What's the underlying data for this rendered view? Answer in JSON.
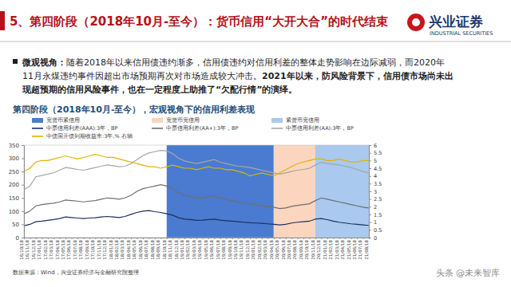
{
  "header": {
    "title": "5、第四阶段（2018年10月-至今）：货币信用“大开大合”的时代结束",
    "logo_cn": "兴业证券",
    "logo_en": "INDUSTRIAL SECURITIES"
  },
  "body": {
    "lines": [
      [
        {
          "text": "微观视角：",
          "bold": true
        },
        {
          "text": "随着2018年以来信用债违约渐多，信用债违约对信用利差的整体走势影响在边际减弱，而2020年",
          "bold": false
        }
      ],
      [
        {
          "text": "11月永煤违约事件因超出市场预期再次对市场造成较大冲击。",
          "bold": false
        },
        {
          "text": "2021年以来，防风险背景下，信用债市场尚未出",
          "bold": true
        }
      ],
      [
        {
          "text": "现超预期的信用风险事件，也在一定程度上助推了“欠配行情”的演绎。",
          "bold": true
        }
      ]
    ]
  },
  "footer": {
    "source": "数据来源：Wind，兴业证券经济与金融研究院整理",
    "watermark": "头条 @未来智库"
  },
  "chart_data": {
    "type": "line",
    "title": "第四阶段（2018年10月-至今），宏观视角下的信用利差表现",
    "categories": [
      "16/10/18",
      "16/11/18",
      "16/12/18",
      "17/01/18",
      "17/02/18",
      "17/03/18",
      "17/04/18",
      "17/05/18",
      "17/06/18",
      "17/07/18",
      "17/08/18",
      "17/09/18",
      "17/10/18",
      "17/11/18",
      "17/12/18",
      "18/01/18",
      "18/02/18",
      "18/03/18",
      "18/04/18",
      "18/05/18",
      "18/06/18",
      "18/07/18",
      "18/08/18",
      "18/09/18",
      "18/10/18",
      "18/11/18",
      "18/12/18",
      "19/01/18",
      "19/02/18",
      "19/03/18",
      "19/04/18",
      "19/05/18",
      "19/06/18",
      "19/07/18",
      "19/08/18",
      "19/09/18",
      "19/10/18",
      "19/11/18",
      "19/12/18",
      "20/01/18",
      "20/02/18",
      "20/03/18",
      "20/04/18",
      "20/05/18",
      "20/06/18",
      "20/07/18",
      "20/08/18",
      "20/09/18",
      "20/10/18",
      "20/11/18",
      "20/12/18",
      "21/01/18",
      "21/02/18",
      "21/03/18",
      "21/04/18",
      "21/05/18",
      "21/06/18",
      "21/07/18",
      "21/08/18"
    ],
    "regions": [
      {
        "name": "宽货币紧信用",
        "color": "#4a7bd0",
        "start": "18/10/18",
        "end": "20/04/18"
      },
      {
        "name": "宽货币宽信用",
        "color": "#fbd5bd",
        "start": "20/04/18",
        "end": "20/11/18"
      },
      {
        "name": "紧货币宽信用",
        "color": "#a9c9ee",
        "start": "20/11/18",
        "end": "21/08/18"
      }
    ],
    "series": [
      {
        "name": "中票信用利差(AAA):3年，BP",
        "color": "#1f2f5c",
        "values": [
          45,
          50,
          60,
          62,
          65,
          68,
          72,
          78,
          76,
          74,
          72,
          74,
          75,
          78,
          80,
          78,
          76,
          80,
          88,
          95,
          100,
          102,
          98,
          95,
          90,
          85,
          75,
          70,
          68,
          65,
          66,
          68,
          70,
          66,
          64,
          62,
          60,
          58,
          56,
          55,
          54,
          52,
          50,
          48,
          50,
          55,
          58,
          60,
          62,
          70,
          72,
          68,
          62,
          58,
          55,
          52,
          50,
          48,
          46
        ]
      },
      {
        "name": "中票信用利差(AA+):3年，BP",
        "color": "#6f6f6f",
        "values": [
          90,
          100,
          120,
          125,
          128,
          130,
          135,
          142,
          140,
          138,
          135,
          138,
          140,
          145,
          150,
          148,
          145,
          150,
          160,
          175,
          185,
          190,
          195,
          200,
          195,
          185,
          170,
          160,
          155,
          150,
          150,
          155,
          158,
          150,
          145,
          140,
          135,
          132,
          128,
          125,
          120,
          118,
          115,
          110,
          112,
          118,
          122,
          125,
          128,
          140,
          150,
          145,
          140,
          135,
          130,
          125,
          120,
          115,
          112
        ]
      },
      {
        "name": "中票信用利差(AA):3年，BP",
        "color": "#a6a6a6",
        "values": [
          180,
          195,
          230,
          235,
          240,
          245,
          255,
          265,
          262,
          258,
          255,
          260,
          265,
          270,
          275,
          272,
          268,
          270,
          280,
          295,
          310,
          320,
          325,
          330,
          328,
          318,
          300,
          290,
          285,
          280,
          285,
          290,
          295,
          285,
          280,
          275,
          270,
          268,
          265,
          260,
          255,
          250,
          245,
          240,
          245,
          250,
          255,
          258,
          262,
          275,
          285,
          280,
          278,
          275,
          270,
          265,
          258,
          250,
          245
        ]
      },
      {
        "name": "中债国开债到期收益率:3年,% 右轴",
        "color": "#e0b400",
        "axis": "y2",
        "values": [
          4.3,
          4.5,
          4.9,
          5.0,
          5.0,
          5.1,
          5.2,
          5.3,
          5.2,
          5.1,
          5.2,
          5.3,
          5.4,
          5.3,
          5.2,
          5.2,
          5.1,
          5.0,
          4.9,
          4.8,
          4.7,
          4.6,
          4.6,
          4.5,
          4.6,
          4.7,
          4.6,
          4.5,
          4.5,
          4.4,
          4.5,
          4.6,
          4.5,
          4.5,
          4.4,
          4.4,
          4.3,
          4.2,
          4.0,
          4.1,
          4.2,
          4.1,
          4.0,
          4.2,
          4.4,
          4.6,
          4.8,
          4.9,
          5.0,
          5.1,
          5.1,
          5.0,
          5.0,
          5.1,
          5.0,
          4.9,
          4.9,
          5.0,
          5.0
        ]
      }
    ],
    "ylim": [
      0,
      350
    ],
    "yticks": [
      0,
      50,
      100,
      150,
      200,
      250,
      300,
      350
    ],
    "y2lim": [
      0,
      6
    ],
    "y2ticks": [
      0,
      0.5,
      1,
      1.5,
      2,
      2.5,
      3,
      3.5,
      4,
      4.5,
      5,
      5.5,
      6
    ],
    "grid": false,
    "legend": "top"
  }
}
